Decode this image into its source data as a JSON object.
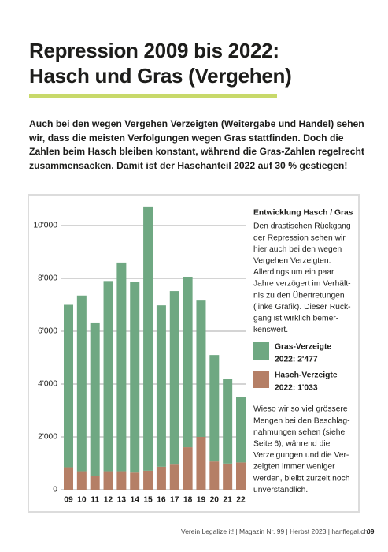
{
  "header": {
    "title_lines": [
      "Repression 2009 bis 2022:",
      "Hasch und Gras (Vergehen)"
    ]
  },
  "intro": {
    "lines": [
      "Auch bei den wegen Vergehen Verzeigten (Weitergabe und Handel) sehen",
      "wir, dass die meisten Verfolgungen wegen Gras stattfinden. Doch die",
      "Zahlen beim Hasch bleiben konstant, während die Gras-Zahlen regelrecht",
      "zusammensacken. Damit ist der Haschanteil 2022 auf 30 % gestiegen!"
    ]
  },
  "chart_data": {
    "type": "stacked-bar",
    "categories": [
      "09",
      "10",
      "11",
      "12",
      "13",
      "14",
      "15",
      "16",
      "17",
      "18",
      "19",
      "20",
      "21",
      "22"
    ],
    "series": [
      {
        "name": "Hasch-Verzeigte",
        "legend_label": "2022: 1'033",
        "color": "#b57f66",
        "values": [
          850,
          700,
          520,
          700,
          700,
          650,
          720,
          870,
          950,
          1610,
          2000,
          1070,
          990,
          1033
        ]
      },
      {
        "name": "Gras-Verzeigte",
        "legend_label": "2022: 2'477",
        "color": "#6fa882",
        "values": [
          6150,
          6650,
          5810,
          7200,
          7900,
          7230,
          10000,
          6110,
          6570,
          6450,
          5160,
          4030,
          3190,
          2477
        ]
      }
    ],
    "ylim": [
      0,
      11000
    ],
    "yticks": [
      0,
      {
        "value": 2000,
        "label": "2'000"
      },
      {
        "value": 4000,
        "label": "4'000"
      },
      {
        "value": 6000,
        "label": "6'000"
      },
      {
        "value": 8000,
        "label": "8'000"
      },
      {
        "value": 10000,
        "label": "10'000"
      }
    ],
    "grid": true
  },
  "sidebar": {
    "title": "Entwicklung Hasch / Gras",
    "paragraph1": [
      "Den drastischen Rückgang",
      "der Repression sehen wir",
      "hier auch bei den wegen",
      "Vergehen Verzeigten.",
      "Allerdings um ein paar",
      "Jahre verzögert im Verhält-",
      "nis zu den Übertretungen",
      "(linke Grafik). Dieser Rück-",
      "gang ist wirklich bemer-",
      "kenswert."
    ],
    "paragraph2": [
      "Wieso wir so viel grössere",
      "Mengen bei den Beschlag-",
      "nahmungen sehen (siehe",
      "Seite 6), während die",
      "Verzeigungen und die Ver-",
      "zeigten immer weniger",
      "werden, bleibt zurzeit noch",
      "unverständlich."
    ]
  },
  "footer": {
    "text": "Verein Legalize it! | Magazin Nr. 99 | Herbst 2023 | hanflegal.ch",
    "page": "09"
  }
}
